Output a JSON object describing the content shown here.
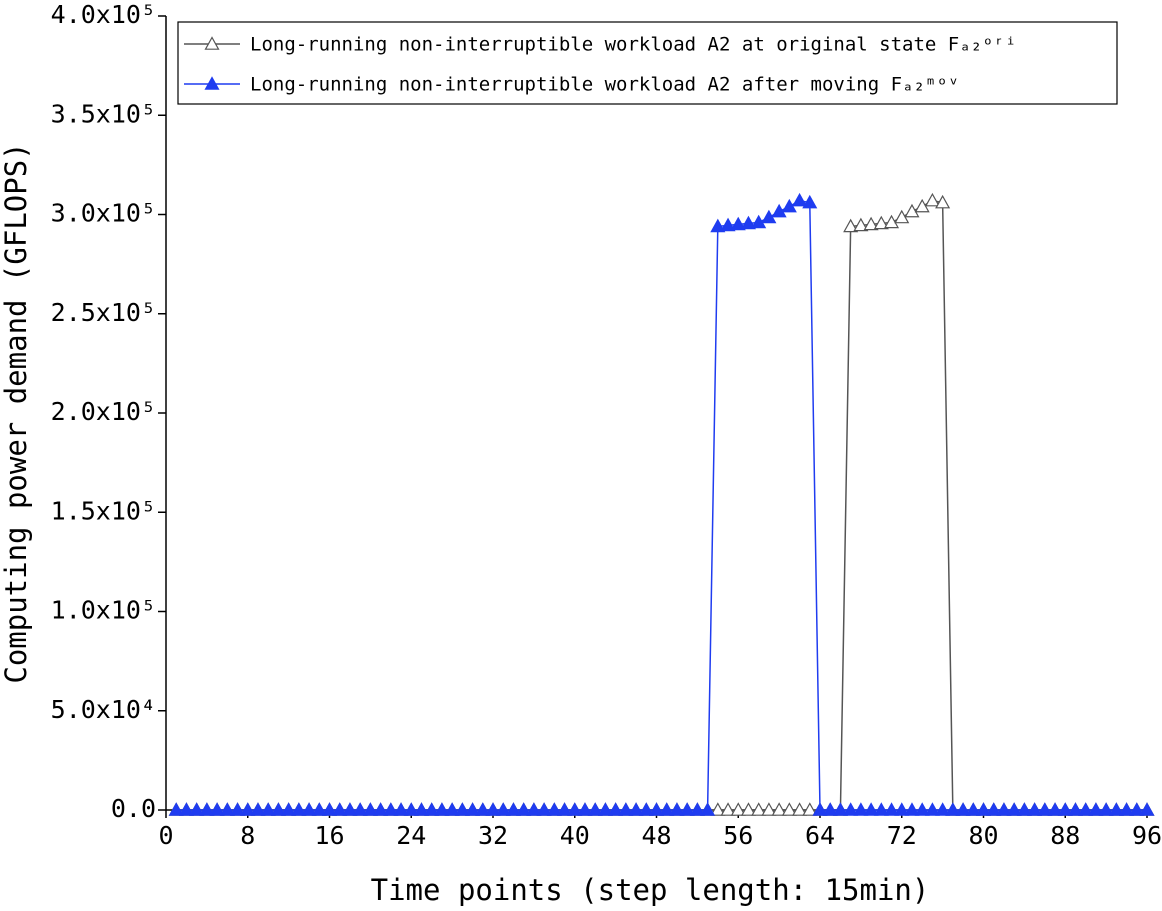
{
  "chart_data": {
    "type": "line",
    "xlabel": "Time points (step length: 15min)",
    "ylabel": "Computing power demand (GFLOPS)",
    "x": [
      1,
      2,
      3,
      4,
      5,
      6,
      7,
      8,
      9,
      10,
      11,
      12,
      13,
      14,
      15,
      16,
      17,
      18,
      19,
      20,
      21,
      22,
      23,
      24,
      25,
      26,
      27,
      28,
      29,
      30,
      31,
      32,
      33,
      34,
      35,
      36,
      37,
      38,
      39,
      40,
      41,
      42,
      43,
      44,
      45,
      46,
      47,
      48,
      49,
      50,
      51,
      52,
      53,
      54,
      55,
      56,
      57,
      58,
      59,
      60,
      61,
      62,
      63,
      64,
      65,
      66,
      67,
      68,
      69,
      70,
      71,
      72,
      73,
      74,
      75,
      76,
      77,
      78,
      79,
      80,
      81,
      82,
      83,
      84,
      85,
      86,
      87,
      88,
      89,
      90,
      91,
      92,
      93,
      94,
      95,
      96
    ],
    "series": [
      {
        "name": "Long-running non-interruptible workload A2 at original state Fₐ₂ᵒʳⁱ",
        "color": "#555555",
        "marker": "open-triangle",
        "values": [
          0,
          0,
          0,
          0,
          0,
          0,
          0,
          0,
          0,
          0,
          0,
          0,
          0,
          0,
          0,
          0,
          0,
          0,
          0,
          0,
          0,
          0,
          0,
          0,
          0,
          0,
          0,
          0,
          0,
          0,
          0,
          0,
          0,
          0,
          0,
          0,
          0,
          0,
          0,
          0,
          0,
          0,
          0,
          0,
          0,
          0,
          0,
          0,
          0,
          0,
          0,
          0,
          0,
          0,
          0,
          0,
          0,
          0,
          0,
          0,
          0,
          0,
          0,
          0,
          0,
          0,
          294000,
          294500,
          295000,
          295500,
          296000,
          298500,
          301500,
          304000,
          307000,
          306000,
          0,
          0,
          0,
          0,
          0,
          0,
          0,
          0,
          0,
          0,
          0,
          0,
          0,
          0,
          0,
          0,
          0,
          0,
          0,
          0
        ]
      },
      {
        "name": "Long-running non-interruptible workload A2 after moving Fₐ₂ᵐᵒᵛ",
        "color": "#1f3cf0",
        "marker": "filled-triangle",
        "values": [
          0,
          0,
          0,
          0,
          0,
          0,
          0,
          0,
          0,
          0,
          0,
          0,
          0,
          0,
          0,
          0,
          0,
          0,
          0,
          0,
          0,
          0,
          0,
          0,
          0,
          0,
          0,
          0,
          0,
          0,
          0,
          0,
          0,
          0,
          0,
          0,
          0,
          0,
          0,
          0,
          0,
          0,
          0,
          0,
          0,
          0,
          0,
          0,
          0,
          0,
          0,
          0,
          0,
          294000,
          294500,
          295000,
          295500,
          296000,
          298500,
          301500,
          304000,
          307000,
          306000,
          0,
          0,
          0,
          0,
          0,
          0,
          0,
          0,
          0,
          0,
          0,
          0,
          0,
          0,
          0,
          0,
          0,
          0,
          0,
          0,
          0,
          0,
          0,
          0,
          0,
          0,
          0,
          0,
          0,
          0,
          0,
          0,
          0
        ]
      }
    ],
    "xlim": [
      0,
      96
    ],
    "xticks": [
      0,
      8,
      16,
      24,
      32,
      40,
      48,
      56,
      64,
      72,
      80,
      88,
      96
    ],
    "ylim": [
      0,
      400000
    ],
    "yticks": [
      {
        "value": 0,
        "label": "0.0"
      },
      {
        "value": 50000,
        "label": "5.0x10⁴"
      },
      {
        "value": 100000,
        "label": "1.0x10⁵"
      },
      {
        "value": 150000,
        "label": "1.5x10⁵"
      },
      {
        "value": 200000,
        "label": "2.0x10⁵"
      },
      {
        "value": 250000,
        "label": "2.5x10⁵"
      },
      {
        "value": 300000,
        "label": "3.0x10⁵"
      },
      {
        "value": 350000,
        "label": "3.5x10⁵"
      },
      {
        "value": 400000,
        "label": "4.0x10⁵"
      }
    ],
    "grid": false,
    "legend": "top"
  }
}
